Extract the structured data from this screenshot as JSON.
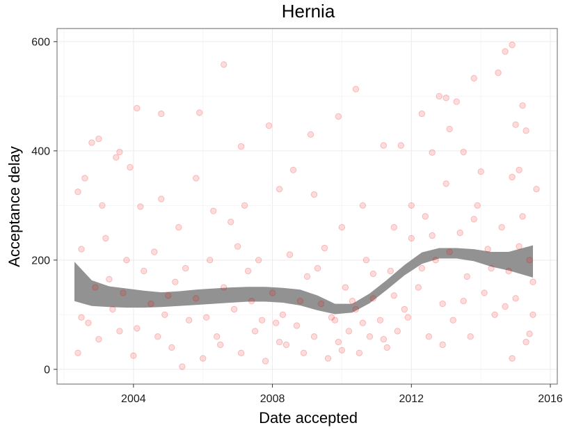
{
  "chart_data": {
    "type": "scatter",
    "title": "Hernia",
    "xlabel": "Date accepted",
    "ylabel": "Acceptance delay",
    "x_ticks": [
      "2004",
      "2008",
      "2012",
      "2016"
    ],
    "y_ticks": [
      "0",
      "200",
      "400",
      "600"
    ],
    "xlim": [
      2001.8,
      2016.2
    ],
    "ylim": [
      -27,
      624
    ],
    "grid": true,
    "legend": "none",
    "colors": {
      "points": "#ff0000",
      "smooth_band": "#8c8c8c"
    },
    "smooth_band": {
      "x": [
        2002.3,
        2002.8,
        2003.3,
        2003.8,
        2004.3,
        2004.8,
        2005.3,
        2005.8,
        2006.3,
        2006.8,
        2007.3,
        2007.8,
        2008.3,
        2008.8,
        2009.3,
        2009.8,
        2010.3,
        2010.8,
        2011.3,
        2011.8,
        2012.3,
        2012.8,
        2013.3,
        2013.8,
        2014.3,
        2014.8,
        2015.5
      ],
      "lower": [
        125,
        116,
        114,
        113,
        113,
        114,
        116,
        118,
        120,
        122,
        124,
        124,
        122,
        117,
        108,
        101,
        104,
        121,
        146,
        172,
        193,
        203,
        203,
        198,
        188,
        181,
        168
      ],
      "upper": [
        197,
        163,
        152,
        148,
        144,
        141,
        143,
        146,
        148,
        150,
        151,
        151,
        149,
        146,
        135,
        120,
        120,
        139,
        164,
        191,
        214,
        222,
        222,
        220,
        215,
        215,
        227
      ]
    },
    "points": [
      [
        2002.6,
        350
      ],
      [
        2002.8,
        415
      ],
      [
        2003.0,
        422
      ],
      [
        2003.5,
        388
      ],
      [
        2003.6,
        398
      ],
      [
        2004.1,
        478
      ],
      [
        2004.8,
        468
      ],
      [
        2005.9,
        470
      ],
      [
        2006.6,
        558
      ],
      [
        2007.1,
        408
      ],
      [
        2007.9,
        446
      ],
      [
        2009.1,
        430
      ],
      [
        2009.9,
        463
      ],
      [
        2010.4,
        513
      ],
      [
        2012.3,
        468
      ],
      [
        2012.8,
        500
      ],
      [
        2013.0,
        497
      ],
      [
        2013.3,
        490
      ],
      [
        2013.8,
        533
      ],
      [
        2014.5,
        543
      ],
      [
        2014.7,
        582
      ],
      [
        2014.9,
        594
      ],
      [
        2015.2,
        483
      ],
      [
        2015.3,
        437
      ],
      [
        2015.0,
        448
      ],
      [
        2012.6,
        397
      ],
      [
        2013.1,
        440
      ],
      [
        2013.5,
        398
      ],
      [
        2014.0,
        362
      ],
      [
        2014.9,
        352
      ],
      [
        2015.1,
        365
      ],
      [
        2002.4,
        325
      ],
      [
        2002.5,
        220
      ],
      [
        2003.1,
        300
      ],
      [
        2003.9,
        370
      ],
      [
        2004.2,
        298
      ],
      [
        2004.8,
        312
      ],
      [
        2005.3,
        260
      ],
      [
        2005.8,
        350
      ],
      [
        2006.3,
        290
      ],
      [
        2006.8,
        270
      ],
      [
        2007.2,
        300
      ],
      [
        2007.6,
        200
      ],
      [
        2008.2,
        330
      ],
      [
        2008.6,
        365
      ],
      [
        2009.2,
        320
      ],
      [
        2009.5,
        222
      ],
      [
        2010.0,
        260
      ],
      [
        2010.6,
        300
      ],
      [
        2011.2,
        410
      ],
      [
        2011.5,
        260
      ],
      [
        2011.7,
        410
      ],
      [
        2012.0,
        300
      ],
      [
        2002.4,
        30
      ],
      [
        2002.7,
        85
      ],
      [
        2002.9,
        150
      ],
      [
        2003.2,
        240
      ],
      [
        2003.4,
        110
      ],
      [
        2003.6,
        70
      ],
      [
        2003.8,
        200
      ],
      [
        2004.0,
        25
      ],
      [
        2004.3,
        180
      ],
      [
        2004.5,
        120
      ],
      [
        2004.7,
        60
      ],
      [
        2004.9,
        100
      ],
      [
        2005.1,
        40
      ],
      [
        2005.2,
        160
      ],
      [
        2005.4,
        5
      ],
      [
        2005.6,
        90
      ],
      [
        2005.8,
        130
      ],
      [
        2006.0,
        20
      ],
      [
        2006.2,
        200
      ],
      [
        2006.4,
        60
      ],
      [
        2006.6,
        150
      ],
      [
        2006.9,
        110
      ],
      [
        2007.1,
        30
      ],
      [
        2007.3,
        180
      ],
      [
        2007.5,
        70
      ],
      [
        2007.7,
        90
      ],
      [
        2007.8,
        15
      ],
      [
        2008.0,
        140
      ],
      [
        2008.2,
        50
      ],
      [
        2008.3,
        100
      ],
      [
        2008.5,
        210
      ],
      [
        2008.7,
        80
      ],
      [
        2008.9,
        30
      ],
      [
        2009.0,
        170
      ],
      [
        2009.2,
        60
      ],
      [
        2009.4,
        120
      ],
      [
        2009.6,
        20
      ],
      [
        2009.8,
        90
      ],
      [
        2009.9,
        50
      ],
      [
        2010.1,
        150
      ],
      [
        2010.2,
        70
      ],
      [
        2010.4,
        110
      ],
      [
        2010.5,
        30
      ],
      [
        2010.7,
        200
      ],
      [
        2010.8,
        60
      ],
      [
        2010.9,
        130
      ],
      [
        2011.1,
        90
      ],
      [
        2011.3,
        40
      ],
      [
        2011.4,
        180
      ],
      [
        2011.6,
        70
      ],
      [
        2011.8,
        110
      ],
      [
        2012.0,
        240
      ],
      [
        2012.2,
        150
      ],
      [
        2012.4,
        280
      ],
      [
        2012.5,
        60
      ],
      [
        2012.7,
        200
      ],
      [
        2012.9,
        120
      ],
      [
        2013.0,
        340
      ],
      [
        2013.2,
        90
      ],
      [
        2013.4,
        250
      ],
      [
        2013.6,
        170
      ],
      [
        2013.7,
        60
      ],
      [
        2013.9,
        300
      ],
      [
        2014.1,
        140
      ],
      [
        2014.2,
        220
      ],
      [
        2014.4,
        100
      ],
      [
        2014.6,
        260
      ],
      [
        2014.8,
        180
      ],
      [
        2014.9,
        20
      ],
      [
        2015.0,
        130
      ],
      [
        2015.2,
        280
      ],
      [
        2015.3,
        50
      ],
      [
        2015.4,
        200
      ],
      [
        2015.5,
        100
      ],
      [
        2015.6,
        330
      ],
      [
        2015.5,
        160
      ],
      [
        2002.5,
        95
      ],
      [
        2003.0,
        55
      ],
      [
        2003.3,
        165
      ],
      [
        2003.7,
        140
      ],
      [
        2004.1,
        75
      ],
      [
        2004.6,
        215
      ],
      [
        2005.0,
        135
      ],
      [
        2005.5,
        185
      ],
      [
        2006.1,
        95
      ],
      [
        2006.5,
        45
      ],
      [
        2007.0,
        225
      ],
      [
        2007.4,
        125
      ],
      [
        2008.1,
        85
      ],
      [
        2008.4,
        45
      ],
      [
        2008.8,
        125
      ],
      [
        2009.3,
        185
      ],
      [
        2009.7,
        95
      ],
      [
        2010.0,
        35
      ],
      [
        2010.3,
        125
      ],
      [
        2010.6,
        85
      ],
      [
        2010.9,
        175
      ],
      [
        2011.2,
        55
      ],
      [
        2011.5,
        135
      ],
      [
        2011.9,
        95
      ],
      [
        2012.3,
        185
      ],
      [
        2012.6,
        245
      ],
      [
        2012.9,
        45
      ],
      [
        2013.1,
        215
      ],
      [
        2013.5,
        125
      ],
      [
        2013.8,
        275
      ],
      [
        2014.3,
        185
      ],
      [
        2014.7,
        115
      ],
      [
        2015.1,
        225
      ],
      [
        2015.4,
        65
      ]
    ]
  }
}
